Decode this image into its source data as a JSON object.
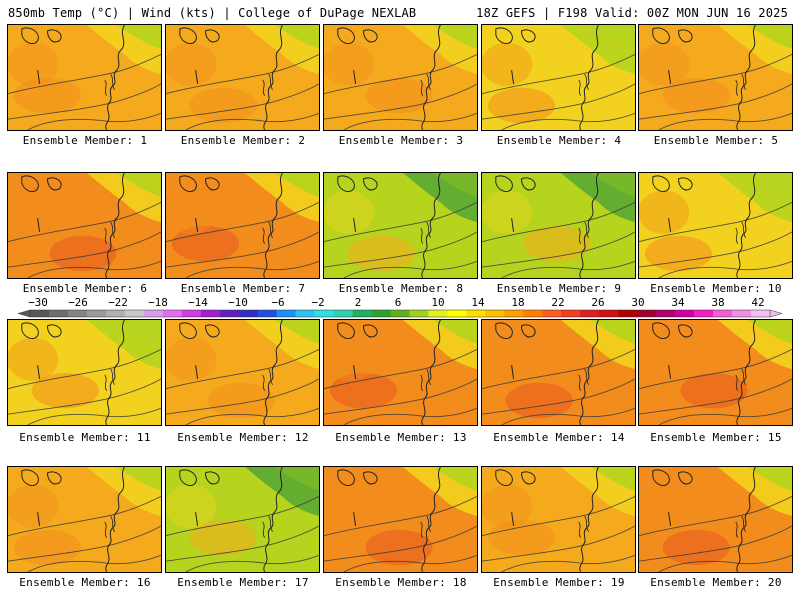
{
  "header": {
    "left": "850mb Temp (°C) | Wind (kts) | College of DuPage NEXLAB",
    "right": "18Z GEFS | F198 Valid: 00Z MON JUN 16 2025"
  },
  "member_label_prefix": "Ensemble Member: ",
  "members": [
    {
      "number": "1",
      "tone": "warm"
    },
    {
      "number": "2",
      "tone": "warm"
    },
    {
      "number": "3",
      "tone": "warm"
    },
    {
      "number": "4",
      "tone": "mild"
    },
    {
      "number": "5",
      "tone": "warm"
    },
    {
      "number": "6",
      "tone": "hot"
    },
    {
      "number": "7",
      "tone": "hot"
    },
    {
      "number": "8",
      "tone": "cool"
    },
    {
      "number": "9",
      "tone": "cool"
    },
    {
      "number": "10",
      "tone": "mild"
    },
    {
      "number": "11",
      "tone": "mild"
    },
    {
      "number": "12",
      "tone": "warm"
    },
    {
      "number": "13",
      "tone": "hot"
    },
    {
      "number": "14",
      "tone": "hot"
    },
    {
      "number": "15",
      "tone": "hot"
    },
    {
      "number": "16",
      "tone": "warm"
    },
    {
      "number": "17",
      "tone": "cool"
    },
    {
      "number": "18",
      "tone": "hot"
    },
    {
      "number": "19",
      "tone": "warm"
    },
    {
      "number": "20",
      "tone": "hot"
    }
  ],
  "colorbar": {
    "ticks": [
      "−30",
      "−26",
      "−22",
      "−18",
      "−14",
      "−10",
      "−6",
      "−2",
      "2",
      "6",
      "10",
      "14",
      "18",
      "22",
      "26",
      "30",
      "34",
      "38",
      "42"
    ],
    "colors": [
      "#585858",
      "#6e6e6e",
      "#848484",
      "#9a9a9a",
      "#b0b0b0",
      "#c8c8c8",
      "#d0a0e8",
      "#e070f0",
      "#d040e0",
      "#a020d0",
      "#6020c0",
      "#3030c0",
      "#2050e0",
      "#2090f0",
      "#30c0f0",
      "#30e0e0",
      "#30d0b0",
      "#20b060",
      "#30a030",
      "#60b020",
      "#a0d020",
      "#e0f020",
      "#ffff00",
      "#ffe000",
      "#ffc000",
      "#ffa000",
      "#ff8000",
      "#ff6020",
      "#f04020",
      "#e02020",
      "#d01010",
      "#b00000",
      "#a00030",
      "#b00070",
      "#d000a0",
      "#f020c0",
      "#f060d0",
      "#f090e0",
      "#f0c0f0"
    ]
  },
  "palette": {
    "hot": "#f28c1c",
    "warm": "#f5aa1e",
    "mild": "#f2d21e",
    "cool": "#b6d41e",
    "cold": "#7ab82a",
    "green": "#5aa832",
    "red": "#e85a20",
    "contour": "#3a3a3a"
  }
}
